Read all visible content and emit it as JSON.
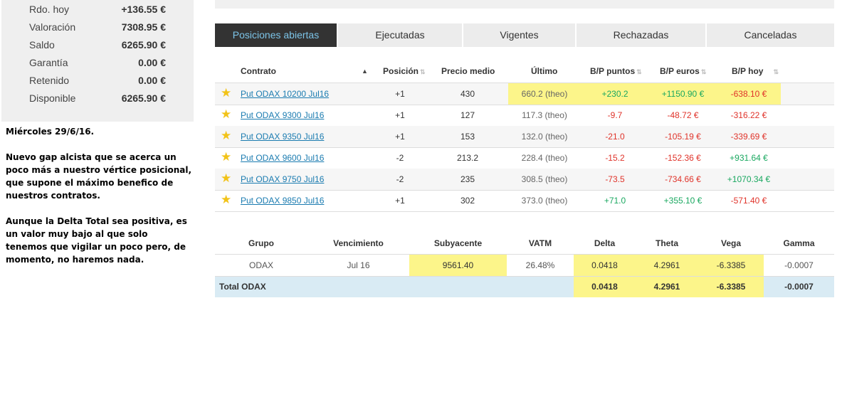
{
  "account": {
    "rows": [
      {
        "label": "Rdo. hoy",
        "value": "+136.55 €"
      },
      {
        "label": "Valoración",
        "value": "7308.95 €"
      },
      {
        "label": "Saldo",
        "value": "6265.90 €"
      },
      {
        "label": "Garantía",
        "value": "0.00 €"
      },
      {
        "label": "Retenido",
        "value": "0.00 €"
      },
      {
        "label": "Disponible",
        "value": "6265.90 €"
      }
    ]
  },
  "note": {
    "p1": "Miércoles 29/6/16.",
    "p2": "Nuevo gap alcista que se acerca un poco más a nuestro vértice posicional, que supone el máximo benefico de nuestros contratos.",
    "p3": "Aunque la Delta Total sea positiva, es un valor muy bajo al que solo tenemos que vigilar un poco pero, de momento, no haremos nada."
  },
  "tabs": [
    "Posiciones abiertas",
    "Ejecutadas",
    "Vigentes",
    "Rechazadas",
    "Canceladas"
  ],
  "positions": {
    "headers": {
      "contrato": "Contrato",
      "posicion": "Posición",
      "precio_medio": "Precio medio",
      "ultimo": "Último",
      "bp_puntos": "B/P puntos",
      "bp_euros": "B/P euros",
      "bp_hoy": "B/P hoy"
    },
    "rows": [
      {
        "contract": "Put ODAX 10200 Jul16",
        "pos": "+1",
        "avg": "430",
        "last": "660.2 (theo)",
        "pts": "+230.2",
        "eur": "+1150.90 €",
        "today": "-638.10 €"
      },
      {
        "contract": "Put ODAX 9300 Jul16",
        "pos": "+1",
        "avg": "127",
        "last": "117.3 (theo)",
        "pts": "-9.7",
        "eur": "-48.72 €",
        "today": "-316.22 €"
      },
      {
        "contract": "Put ODAX 9350 Jul16",
        "pos": "+1",
        "avg": "153",
        "last": "132.0 (theo)",
        "pts": "-21.0",
        "eur": "-105.19 €",
        "today": "-339.69 €"
      },
      {
        "contract": "Put ODAX 9600 Jul16",
        "pos": "-2",
        "avg": "213.2",
        "last": "228.4 (theo)",
        "pts": "-15.2",
        "eur": "-152.36 €",
        "today": "+931.64 €"
      },
      {
        "contract": "Put ODAX 9750 Jul16",
        "pos": "-2",
        "avg": "235",
        "last": "308.5 (theo)",
        "pts": "-73.5",
        "eur": "-734.66 €",
        "today": "+1070.34 €"
      },
      {
        "contract": "Put ODAX 9850 Jul16",
        "pos": "+1",
        "avg": "302",
        "last": "373.0 (theo)",
        "pts": "+71.0",
        "eur": "+355.10 €",
        "today": "-571.40 €"
      }
    ]
  },
  "greeks": {
    "headers": {
      "grupo": "Grupo",
      "vencimiento": "Vencimiento",
      "subyacente": "Subyacente",
      "vatm": "VATM",
      "delta": "Delta",
      "theta": "Theta",
      "vega": "Vega",
      "gamma": "Gamma"
    },
    "row": {
      "grupo": "ODAX",
      "vencimiento": "Jul 16",
      "subyacente": "9561.40",
      "vatm": "26.48%",
      "delta": "0.0418",
      "theta": "4.2961",
      "vega": "-6.3385",
      "gamma": "-0.0007"
    },
    "total": {
      "label": "Total ODAX",
      "delta": "0.0418",
      "theta": "4.2961",
      "vega": "-6.3385",
      "gamma": "-0.0007"
    }
  },
  "colors": {
    "positive": "#1aa860",
    "negative": "#e0332a",
    "highlight": "#fcf58a",
    "active_tab": "#333333",
    "total_row": "#d9ebf4"
  }
}
